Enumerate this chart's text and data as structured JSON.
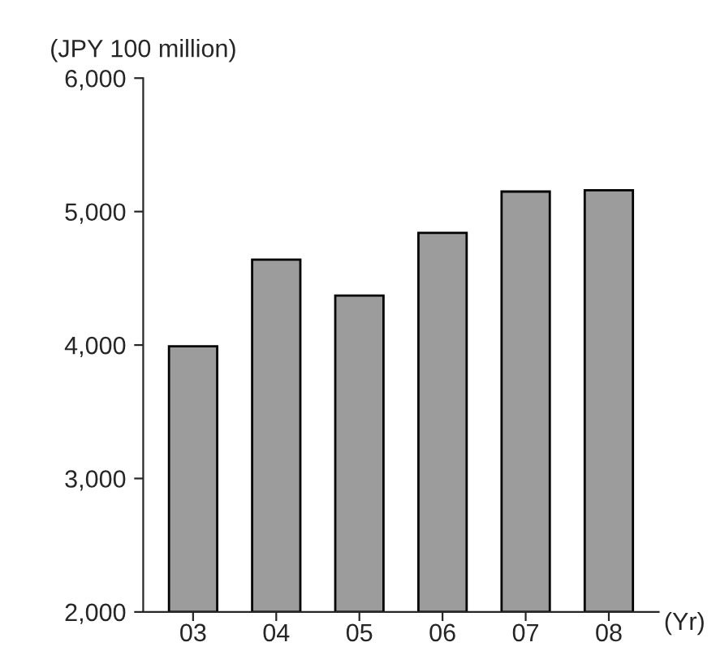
{
  "chart_data": {
    "type": "bar",
    "ylabel": "(JPY 100 million)",
    "xlabel": "(Yr)",
    "categories": [
      "03",
      "04",
      "05",
      "06",
      "07",
      "08"
    ],
    "values": [
      3990,
      4640,
      4370,
      4840,
      5150,
      5160
    ],
    "color": "#9c9c9c",
    "ylim": [
      2000,
      6000
    ],
    "yticks": [
      {
        "value": 2000,
        "label": "2,000"
      },
      {
        "value": 3000,
        "label": "3,000"
      },
      {
        "value": 4000,
        "label": "4,000"
      },
      {
        "value": 5000,
        "label": "5,000"
      },
      {
        "value": 6000,
        "label": "6,000"
      }
    ],
    "grid": false,
    "legend": false
  }
}
